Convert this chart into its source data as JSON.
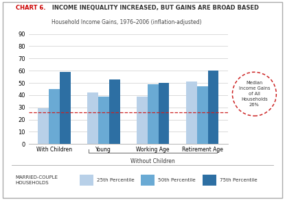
{
  "title_chart": "CHART 6.",
  "title_main": " INCOME INEQUALITY INCREASED, BUT GAINS ARE BROAD BASED",
  "subtitle": "Household Income Gains, 1976–2006 (inflation-adjusted)",
  "categories": [
    "With Children",
    "Young",
    "Working Age",
    "Retirement Age"
  ],
  "series": {
    "25th Percentile": [
      29,
      42,
      39,
      51
    ],
    "50th Percentile": [
      45,
      39,
      49,
      47
    ],
    "75th Percentile": [
      59,
      53,
      50,
      60
    ]
  },
  "colors": {
    "25th Percentile": "#b8d0e8",
    "50th Percentile": "#6aaad4",
    "75th Percentile": "#2d6fa3"
  },
  "ylim": [
    0,
    90
  ],
  "yticks": [
    0,
    10,
    20,
    30,
    40,
    50,
    60,
    70,
    80,
    90
  ],
  "median_line_y": 26,
  "median_label": "Median\nIncome Gains\nof All\nHouseholds\n26%",
  "legend_title": "MARRIED-COUPLE\nHOUSEHOLDS",
  "legend_items": [
    "25th Percentile",
    "50th Percentile",
    "75th Percentile"
  ],
  "background_color": "#ffffff",
  "grid_color": "#cccccc",
  "bar_width": 0.22,
  "dashed_line_color": "#cc2222",
  "circle_color": "#cc2222"
}
